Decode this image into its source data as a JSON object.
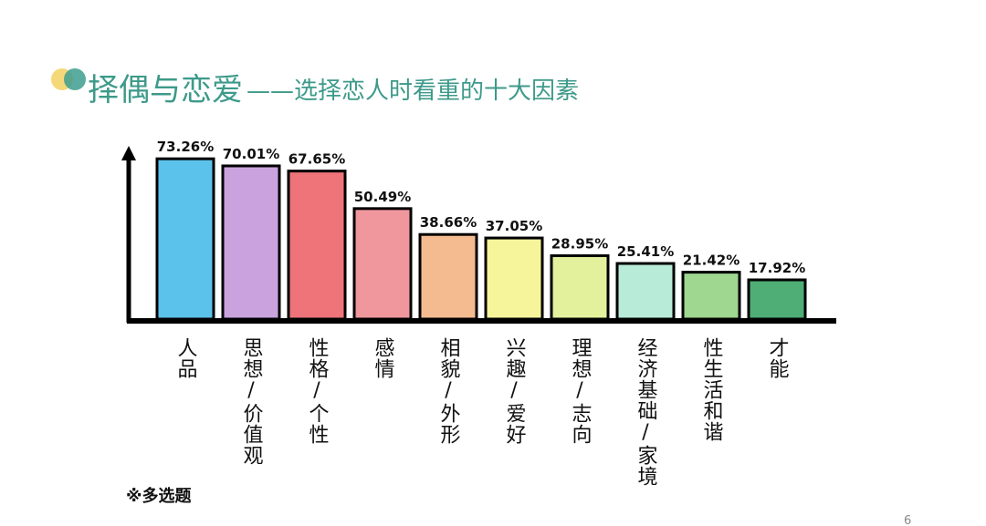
{
  "chart_data": {
    "type": "bar",
    "title": "择偶与恋爱",
    "subtitle": "——选择恋人时看重的十大因素",
    "categories": [
      "人品",
      "思想/价值观",
      "性格/个性",
      "感情",
      "相貌/外形",
      "兴趣/爱好",
      "理想/志向",
      "经济基础/家境",
      "性生活和谐",
      "才能"
    ],
    "values": [
      73.26,
      70.01,
      67.65,
      50.49,
      38.66,
      37.05,
      28.95,
      25.41,
      21.42,
      17.92
    ],
    "value_labels": [
      "73.26%",
      "70.01%",
      "67.65%",
      "50.49%",
      "38.66%",
      "37.05%",
      "28.95%",
      "25.41%",
      "21.42%",
      "17.92%"
    ],
    "colors": [
      "#5bc2ec",
      "#caa3de",
      "#ee7479",
      "#f0979d",
      "#f4bb90",
      "#f7f59c",
      "#e3f19d",
      "#b8ecd8",
      "#9fd690",
      "#4fad76"
    ],
    "note": "※多选题",
    "page_number": "6"
  }
}
